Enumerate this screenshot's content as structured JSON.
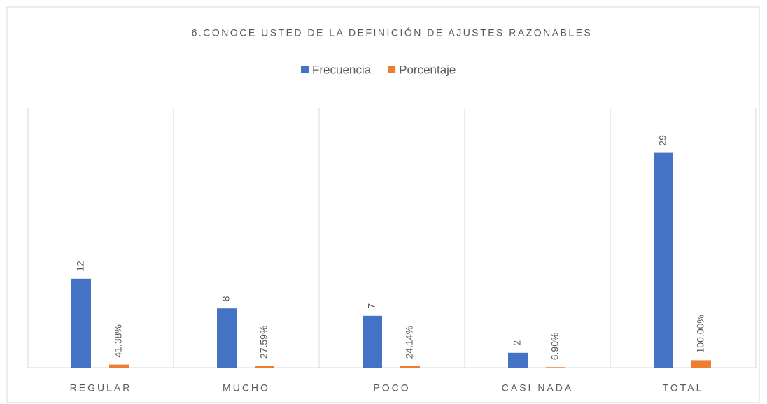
{
  "chart_data": {
    "type": "bar",
    "title": "6.CONOCE USTED DE LA DEFINICIÓN DE AJUSTES RAZONABLES",
    "categories": [
      "REGULAR",
      "MUCHO",
      "POCO",
      "CASI NADA",
      "TOTAL"
    ],
    "series": [
      {
        "name": "Frecuencia",
        "color": "#4472c4",
        "values": [
          12,
          8,
          7,
          2,
          29
        ]
      },
      {
        "name": "Porcentaje",
        "color": "#ed7d31",
        "values": [
          0.4138,
          0.2759,
          0.2414,
          0.069,
          1.0
        ],
        "value_labels": [
          "41.38%",
          "27.59%",
          "24.14%",
          "6.90%",
          "100.00%"
        ]
      }
    ],
    "ylim": [
      0,
      35
    ],
    "legend": "top",
    "grid": true
  }
}
